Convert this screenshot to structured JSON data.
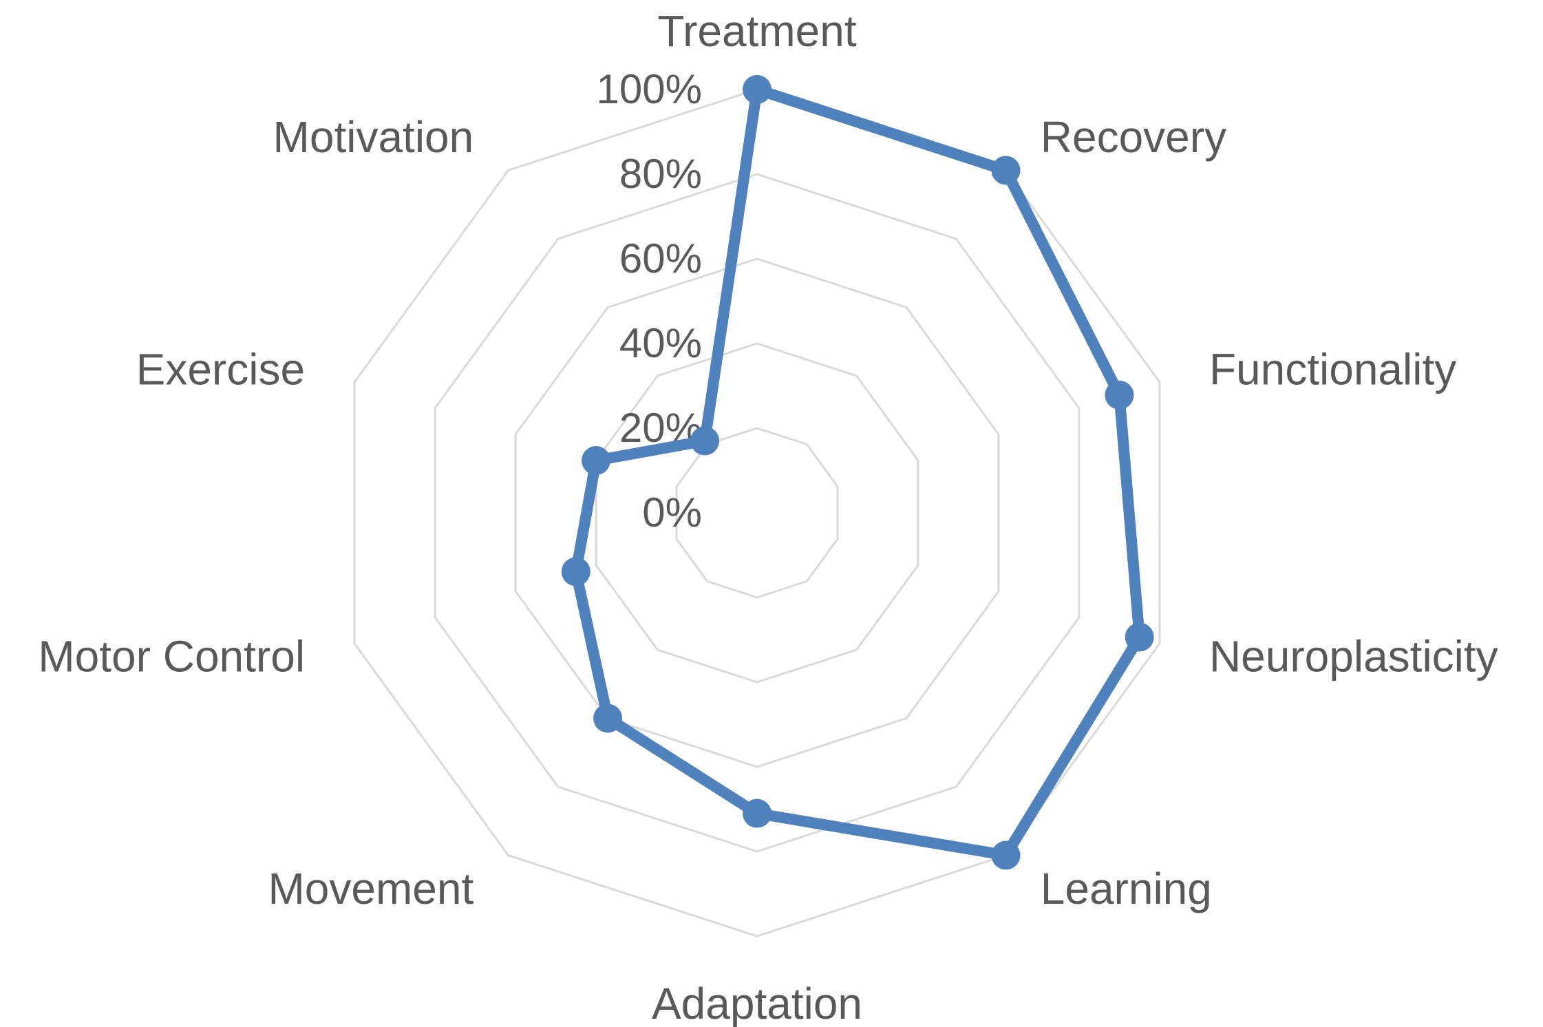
{
  "chart_data": {
    "type": "radar",
    "categories": [
      "Treatment",
      "Recovery",
      "Functionality",
      "Neuroplasticity",
      "Learning",
      "Adaptation",
      "Movement",
      "Motor Control",
      "Exercise",
      "Motivation"
    ],
    "series": [
      {
        "values": [
          100,
          100,
          90,
          95,
          100,
          71,
          60,
          45,
          40,
          21
        ],
        "color": "#4f81bd"
      }
    ],
    "rlim": [
      0,
      100
    ],
    "ticks": [
      0,
      20,
      40,
      60,
      80,
      100
    ],
    "tick_labels": [
      "0%",
      "20%",
      "40%",
      "60%",
      "80%",
      "100%"
    ],
    "grid": true,
    "legend": "none",
    "colors": {
      "grid": "#d9d9d9",
      "text": "#595959",
      "series": "#4f81bd"
    }
  }
}
